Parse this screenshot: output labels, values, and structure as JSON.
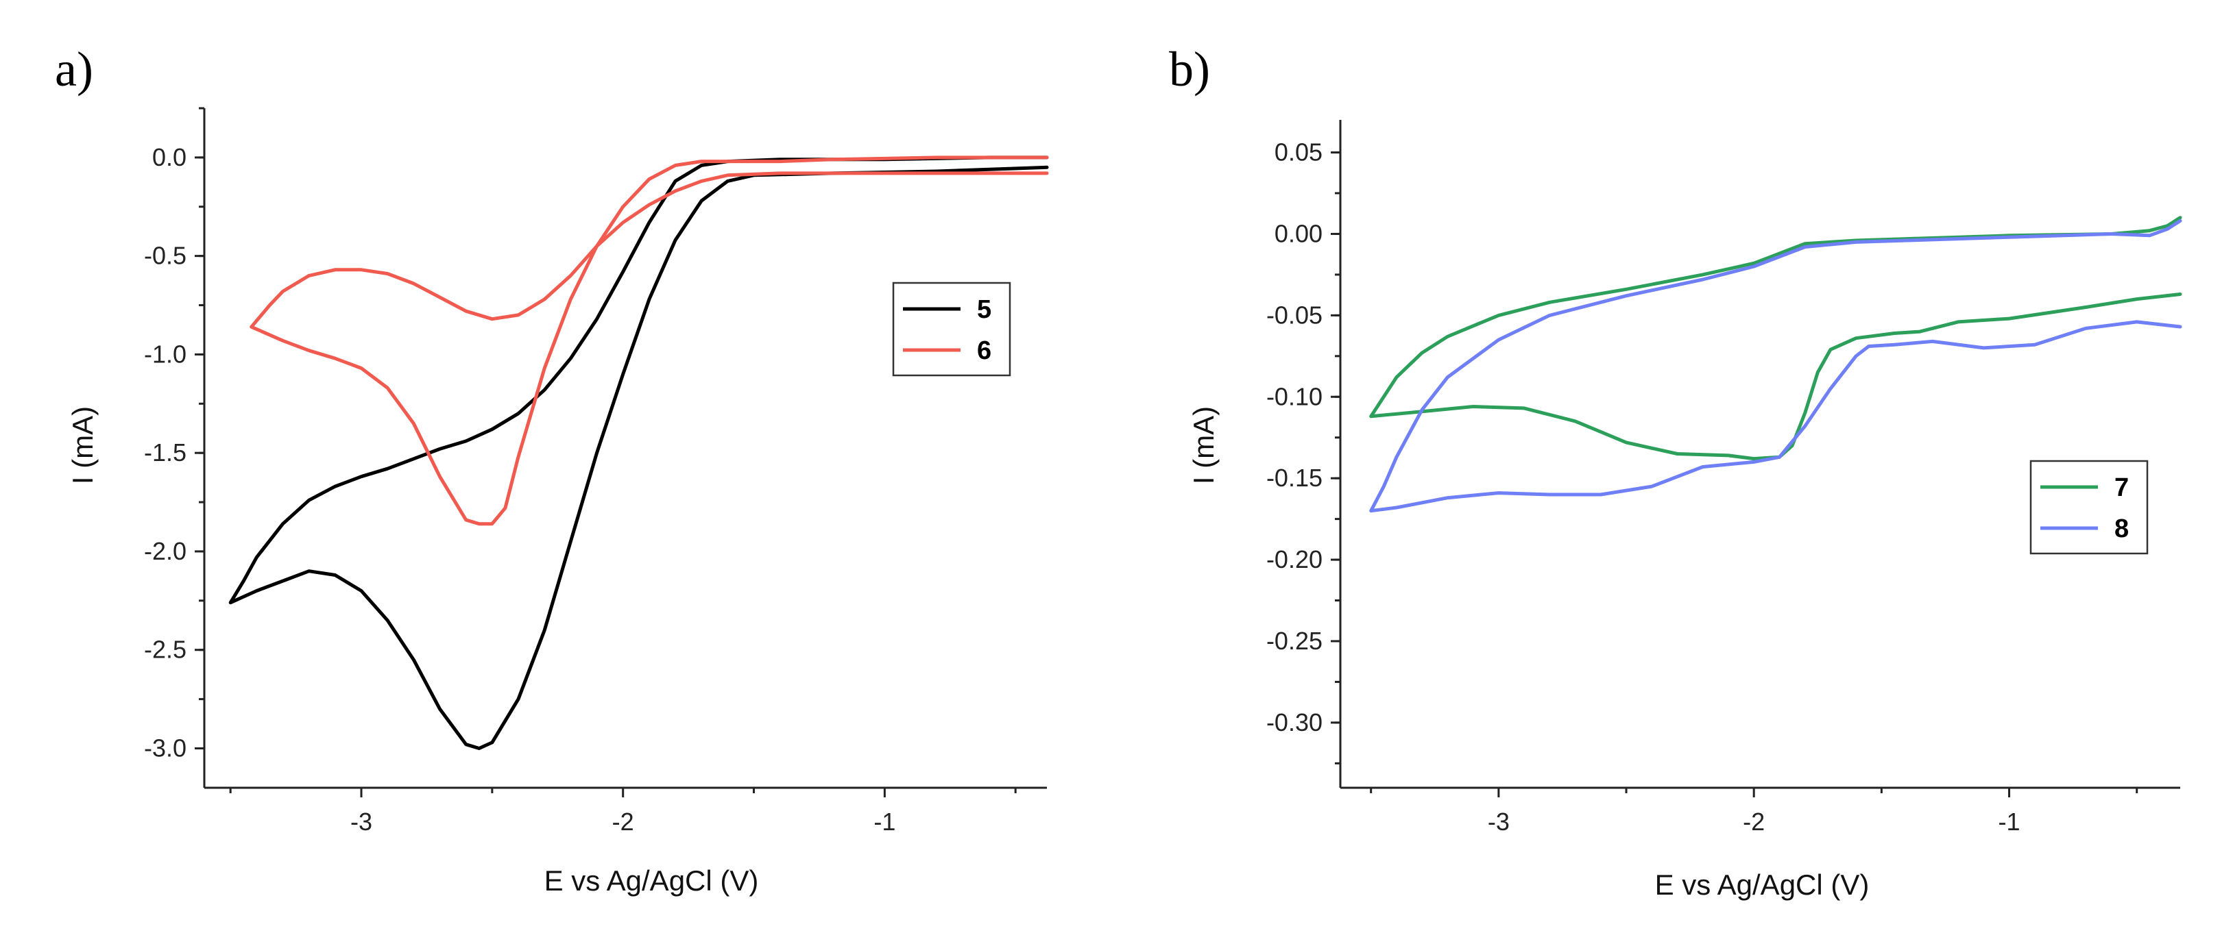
{
  "chart_data": [
    {
      "type": "line",
      "panel_label": "a)",
      "xlabel": "E vs Ag/AgCl (V)",
      "ylabel": "I (mA)",
      "xlim": [
        -3.6,
        -0.38
      ],
      "ylim": [
        -3.2,
        0.25
      ],
      "xticks": [
        -3,
        -2,
        -1
      ],
      "xtick_labels": [
        "-3",
        "-2",
        "-1"
      ],
      "yticks": [
        0.0,
        -0.5,
        -1.0,
        -1.5,
        -2.0,
        -2.5,
        -3.0
      ],
      "ytick_labels": [
        "0.0",
        "-0.5",
        "-1.0",
        "-1.5",
        "-2.0",
        "-2.5",
        "-3.0"
      ],
      "legend_position": "right",
      "series": [
        {
          "name": "5",
          "color": "#000000",
          "x": [
            -0.38,
            -0.8,
            -1.2,
            -1.5,
            -1.6,
            -1.7,
            -1.8,
            -1.9,
            -2.0,
            -2.1,
            -2.2,
            -2.3,
            -2.4,
            -2.5,
            -2.55,
            -2.6,
            -2.7,
            -2.8,
            -2.9,
            -3.0,
            -3.1,
            -3.2,
            -3.3,
            -3.4,
            -3.5,
            -3.45,
            -3.4,
            -3.3,
            -3.2,
            -3.1,
            -3.0,
            -2.9,
            -2.8,
            -2.7,
            -2.6,
            -2.5,
            -2.4,
            -2.3,
            -2.2,
            -2.1,
            -2.0,
            -1.9,
            -1.8,
            -1.7,
            -1.6,
            -1.4,
            -1.0,
            -0.6,
            -0.38
          ],
          "y": [
            -0.05,
            -0.07,
            -0.08,
            -0.09,
            -0.12,
            -0.22,
            -0.42,
            -0.72,
            -1.1,
            -1.5,
            -1.95,
            -2.4,
            -2.75,
            -2.97,
            -3.0,
            -2.98,
            -2.8,
            -2.55,
            -2.35,
            -2.2,
            -2.12,
            -2.1,
            -2.15,
            -2.2,
            -2.26,
            -2.15,
            -2.03,
            -1.86,
            -1.74,
            -1.67,
            -1.62,
            -1.58,
            -1.53,
            -1.48,
            -1.44,
            -1.38,
            -1.3,
            -1.18,
            -1.02,
            -0.82,
            -0.58,
            -0.33,
            -0.12,
            -0.04,
            -0.02,
            -0.01,
            -0.01,
            0.0,
            0.0
          ]
        },
        {
          "name": "6",
          "color": "#f05a4f",
          "x": [
            -0.38,
            -0.8,
            -1.2,
            -1.4,
            -1.6,
            -1.7,
            -1.8,
            -1.9,
            -2.0,
            -2.1,
            -2.2,
            -2.3,
            -2.4,
            -2.45,
            -2.5,
            -2.55,
            -2.6,
            -2.7,
            -2.8,
            -2.9,
            -3.0,
            -3.1,
            -3.2,
            -3.3,
            -3.42,
            -3.35,
            -3.3,
            -3.2,
            -3.1,
            -3.0,
            -2.9,
            -2.8,
            -2.7,
            -2.6,
            -2.5,
            -2.4,
            -2.3,
            -2.2,
            -2.1,
            -2.0,
            -1.9,
            -1.8,
            -1.7,
            -1.6,
            -1.4,
            -1.0,
            -0.6,
            -0.38
          ],
          "y": [
            0.0,
            0.0,
            -0.01,
            -0.02,
            -0.02,
            -0.02,
            -0.04,
            -0.11,
            -0.25,
            -0.45,
            -0.72,
            -1.07,
            -1.52,
            -1.78,
            -1.86,
            -1.86,
            -1.84,
            -1.62,
            -1.35,
            -1.17,
            -1.07,
            -1.02,
            -0.98,
            -0.93,
            -0.86,
            -0.75,
            -0.68,
            -0.6,
            -0.57,
            -0.57,
            -0.59,
            -0.64,
            -0.71,
            -0.78,
            -0.82,
            -0.8,
            -0.72,
            -0.6,
            -0.45,
            -0.33,
            -0.24,
            -0.17,
            -0.12,
            -0.09,
            -0.08,
            -0.08,
            -0.08,
            -0.08
          ]
        }
      ]
    },
    {
      "type": "line",
      "panel_label": "b)",
      "xlabel": "E vs Ag/AgCl (V)",
      "ylabel": "I (mA)",
      "xlim": [
        -3.62,
        -0.33
      ],
      "ylim": [
        -0.34,
        0.07
      ],
      "xticks": [
        -3,
        -2,
        -1
      ],
      "xtick_labels": [
        "-3",
        "-2",
        "-1"
      ],
      "yticks": [
        0.05,
        0.0,
        -0.05,
        -0.1,
        -0.15,
        -0.2,
        -0.25,
        -0.3
      ],
      "ytick_labels": [
        "0.05",
        "0.00",
        "-0.05",
        "-0.10",
        "-0.15",
        "-0.20",
        "-0.25",
        "-0.30"
      ],
      "legend_position": "center-right",
      "series": [
        {
          "name": "7",
          "color": "#2ca05a",
          "x": [
            -0.33,
            -0.5,
            -0.7,
            -1.0,
            -1.2,
            -1.35,
            -1.45,
            -1.6,
            -1.7,
            -1.75,
            -1.8,
            -1.85,
            -1.9,
            -2.0,
            -2.1,
            -2.3,
            -2.5,
            -2.7,
            -2.9,
            -3.1,
            -3.3,
            -3.5,
            -3.45,
            -3.4,
            -3.3,
            -3.2,
            -3.0,
            -2.8,
            -2.5,
            -2.2,
            -2.0,
            -1.8,
            -1.6,
            -1.4,
            -1.0,
            -0.6,
            -0.45,
            -0.38,
            -0.33
          ],
          "y": [
            -0.037,
            -0.04,
            -0.045,
            -0.052,
            -0.054,
            -0.06,
            -0.061,
            -0.064,
            -0.071,
            -0.085,
            -0.11,
            -0.13,
            -0.137,
            -0.138,
            -0.136,
            -0.135,
            -0.128,
            -0.115,
            -0.107,
            -0.106,
            -0.109,
            -0.112,
            -0.1,
            -0.088,
            -0.073,
            -0.063,
            -0.05,
            -0.042,
            -0.034,
            -0.025,
            -0.018,
            -0.006,
            -0.004,
            -0.003,
            -0.001,
            0.0,
            0.002,
            0.005,
            0.01
          ]
        },
        {
          "name": "8",
          "color": "#6f7ff5",
          "x": [
            -0.33,
            -0.5,
            -0.7,
            -0.9,
            -1.1,
            -1.3,
            -1.45,
            -1.55,
            -1.6,
            -1.7,
            -1.8,
            -1.9,
            -2.0,
            -2.2,
            -2.4,
            -2.6,
            -2.8,
            -3.0,
            -3.2,
            -3.4,
            -3.5,
            -3.45,
            -3.4,
            -3.3,
            -3.2,
            -3.0,
            -2.8,
            -2.5,
            -2.2,
            -2.0,
            -1.8,
            -1.6,
            -1.4,
            -1.0,
            -0.6,
            -0.45,
            -0.38,
            -0.33
          ],
          "y": [
            -0.057,
            -0.054,
            -0.058,
            -0.068,
            -0.07,
            -0.066,
            -0.068,
            -0.069,
            -0.075,
            -0.095,
            -0.118,
            -0.137,
            -0.14,
            -0.143,
            -0.155,
            -0.16,
            -0.16,
            -0.159,
            -0.162,
            -0.168,
            -0.17,
            -0.155,
            -0.137,
            -0.108,
            -0.088,
            -0.065,
            -0.05,
            -0.038,
            -0.028,
            -0.02,
            -0.008,
            -0.005,
            -0.004,
            -0.002,
            0.0,
            -0.001,
            0.003,
            0.008
          ]
        }
      ]
    }
  ]
}
